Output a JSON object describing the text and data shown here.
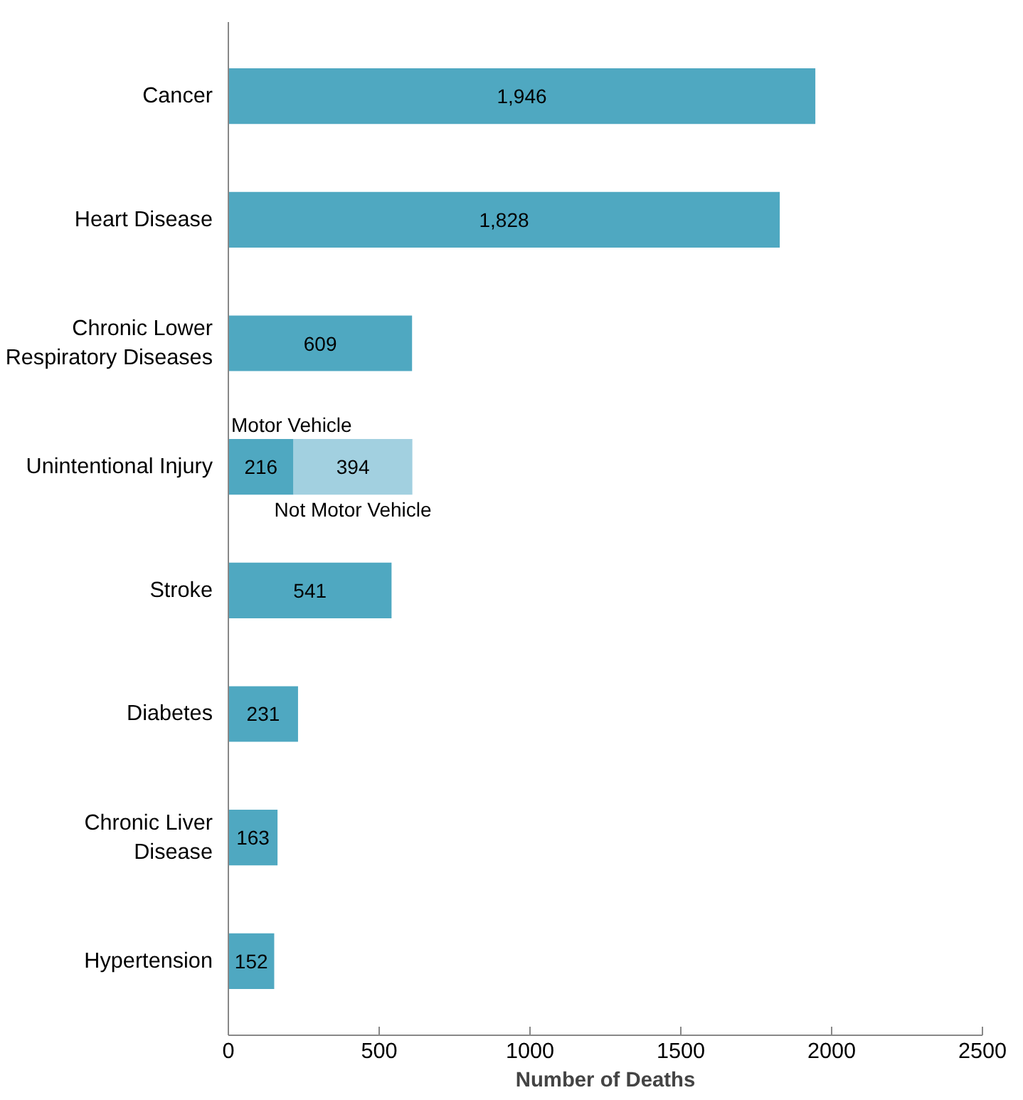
{
  "chart_data": {
    "type": "bar",
    "orientation": "horizontal",
    "stacked": true,
    "categories": [
      "Cancer",
      "Heart Disease",
      "Chronic Lower Respiratory Diseases",
      "Unintentional Injury",
      "Stroke",
      "Diabetes",
      "Chronic Liver Disease",
      "Hypertension"
    ],
    "series": [
      {
        "color": "#4fa8c1",
        "values": [
          1946,
          1828,
          609,
          216,
          541,
          231,
          163,
          152
        ],
        "value_labels": [
          "1,946",
          "1,828",
          "609",
          "216",
          "541",
          "231",
          "163",
          "152"
        ]
      },
      {
        "color": "#a2d0e0",
        "values": [
          null,
          null,
          null,
          394,
          null,
          null,
          null,
          null
        ],
        "value_labels": [
          null,
          null,
          null,
          "394",
          null,
          null,
          null,
          null
        ]
      }
    ],
    "xlabel": "Number of Deaths",
    "xlim": [
      0,
      2500
    ],
    "xticks": [
      0,
      500,
      1000,
      1500,
      2000,
      2500
    ],
    "grid": false,
    "annotations": [
      "Motor Vehicle",
      "Not Motor Vehicle"
    ]
  }
}
